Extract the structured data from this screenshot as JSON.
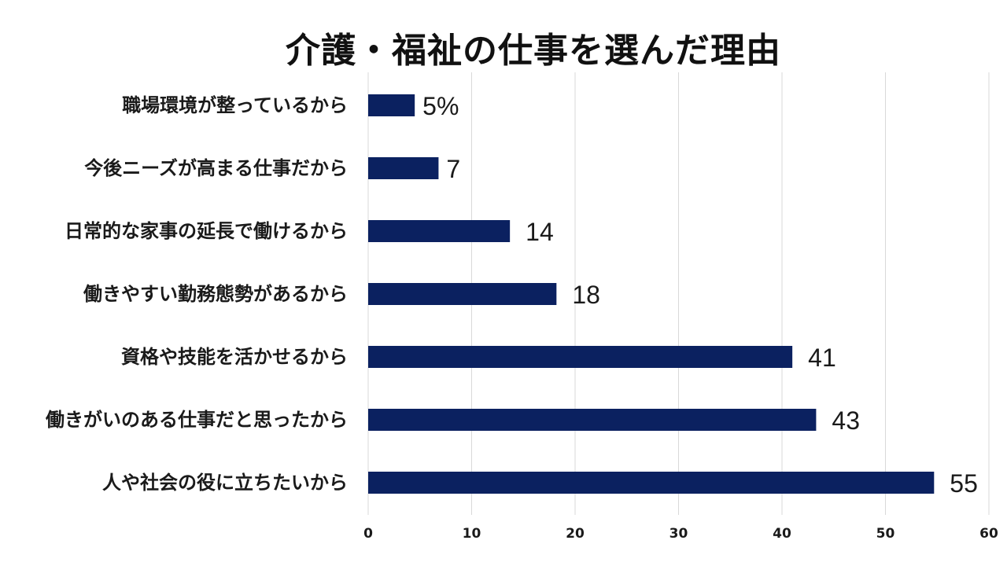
{
  "chart_data": {
    "type": "bar",
    "orientation": "horizontal",
    "title": "介護・福祉の仕事を選んだ理由",
    "categories": [
      "職場環境が整っているから",
      "今後ニーズが高まる仕事だから",
      "日常的な家事の延長で働けるから",
      "働きやすい勤務態勢があるから",
      "資格や技能を活かせるから",
      "働きがいのある仕事だと思ったから",
      "人や社会の役に立ちたいから"
    ],
    "values": [
      4.5,
      6.8,
      13.7,
      18.2,
      41.0,
      43.3,
      54.7
    ],
    "data_labels": [
      "5%",
      "7",
      "14",
      "18",
      "41",
      "43",
      "55"
    ],
    "xlim": [
      0,
      60
    ],
    "xticks": [
      "0",
      "10",
      "20",
      "30",
      "40",
      "50",
      "60"
    ],
    "grid": true,
    "bar_color": "#0b2160",
    "gridline_color": "#d9d9d9"
  }
}
